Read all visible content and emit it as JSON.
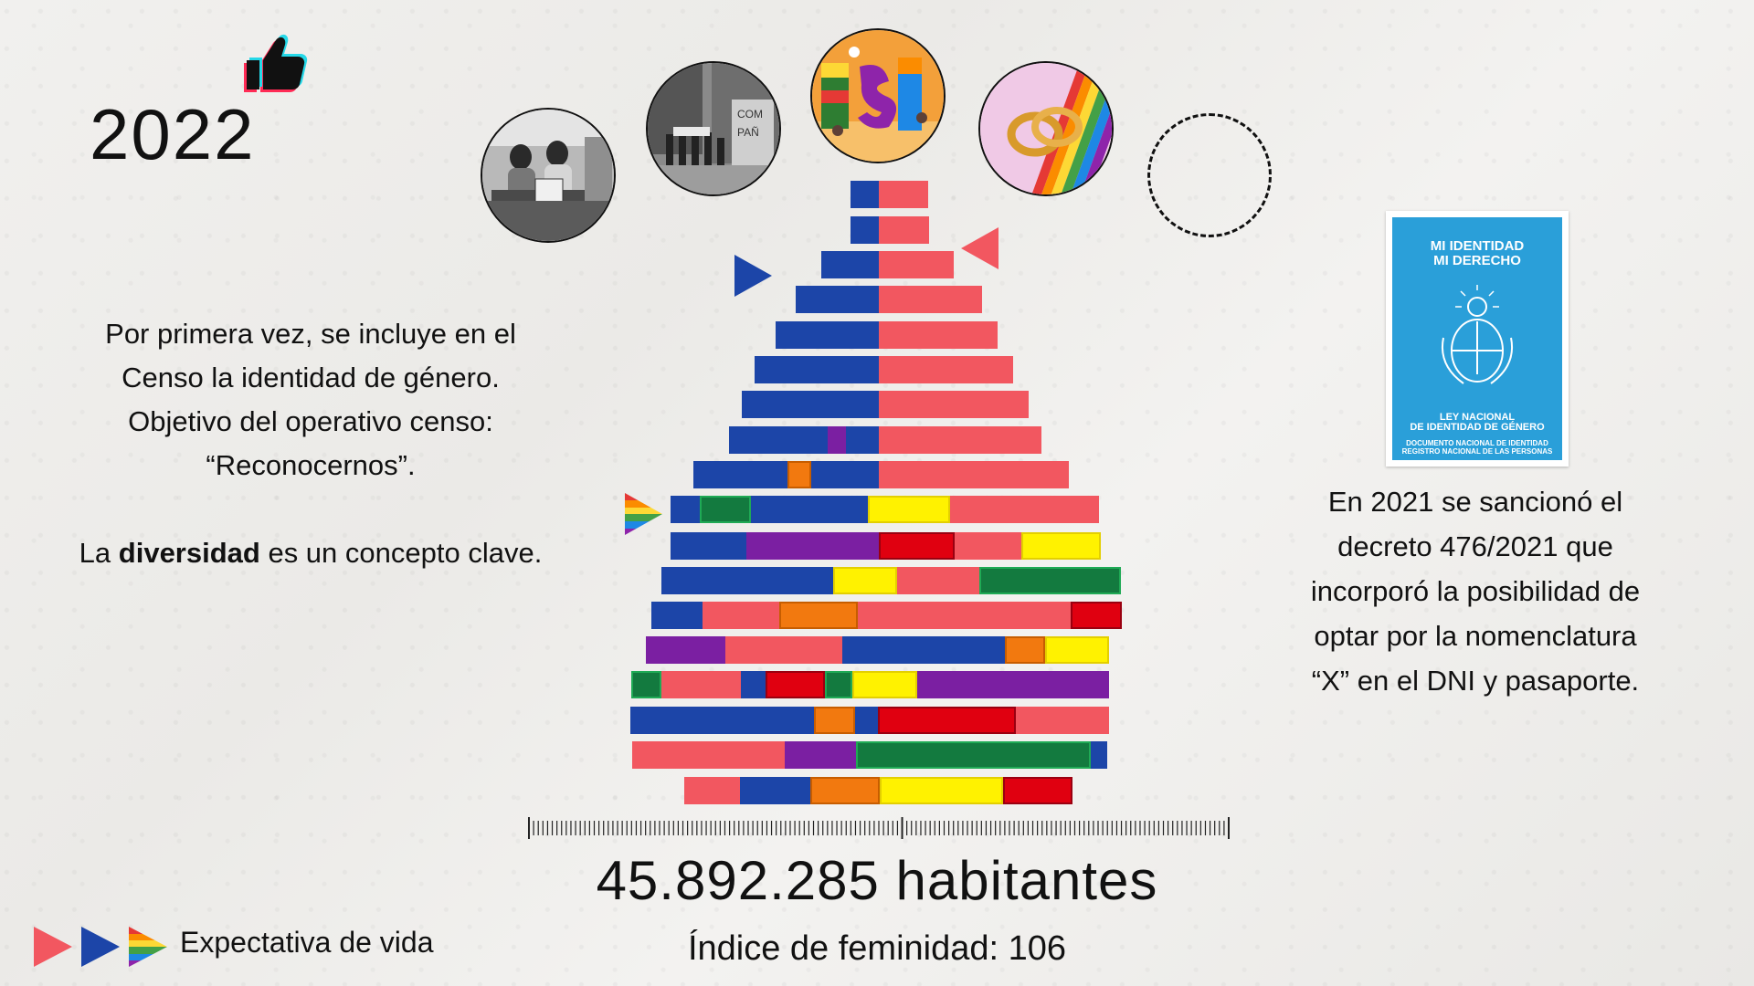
{
  "year": "2022",
  "left_text": {
    "line1": "Por primera vez, se incluye en el",
    "line2": "Censo la  identidad de género.",
    "line3": "Objetivo del operativo censo:",
    "line4": "“Reconocernos”.",
    "line5_pre": "La ",
    "line5_bold": "diversidad",
    "line5_post": " es un concepto clave."
  },
  "right_text": {
    "line1": "En 2021 se sancionó el",
    "line2": "decreto 476/2021 que",
    "line3": "incorporó la posibilidad de",
    "line4": "optar por la nomenclatura",
    "line5": "“X” en el DNI y pasaporte."
  },
  "book": {
    "title1": "MI IDENTIDAD",
    "title2": "MI DERECHO",
    "law1": "LEY NACIONAL",
    "law2": "DE IDENTIDAD DE GÉNERO",
    "sub1": "DOCUMENTO NACIONAL DE IDENTIDAD",
    "sub2": "REGISTRO NACIONAL DE LAS PERSONAS"
  },
  "population": "45.892.285 habitantes",
  "femininity": "Índice de feminidad: 106",
  "legend_label": "Expectativa de vida",
  "colors": {
    "blue": "#1c45a8",
    "red": "#f25760",
    "purple": "#7b1fa2",
    "orange": "#f2790f",
    "green": "#137a3f",
    "yellow": "#fff200",
    "darkred": "#e00010"
  },
  "icons": [
    "thumbs-up-icon",
    "play-triangle-blue-icon",
    "play-triangle-red-icon",
    "rainbow-triangle-icon"
  ]
}
